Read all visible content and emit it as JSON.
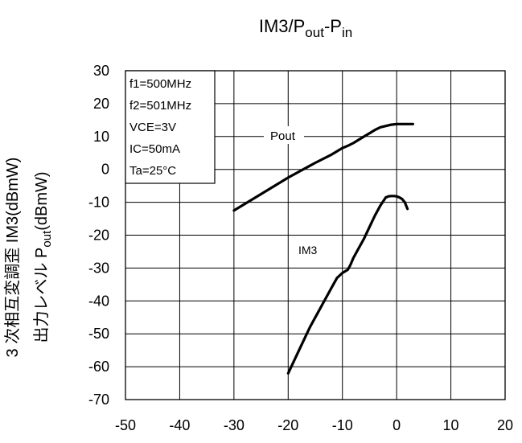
{
  "chart_data": {
    "type": "line",
    "title": {
      "main": "IM3/P",
      "sub1": "out",
      "mid": "-P",
      "sub2": "in"
    },
    "ylabel": {
      "line1": "3 次相互変調歪  IM3(dBmW)",
      "line2_pre": "出力レベル  P",
      "line2_sub": "out",
      "line2_post": "(dBmW)"
    },
    "xlim": [
      -50,
      20
    ],
    "ylim": [
      -70,
      30
    ],
    "x_ticks": [
      -50,
      -40,
      -30,
      -20,
      -10,
      0,
      10,
      20
    ],
    "y_ticks": [
      30,
      20,
      10,
      0,
      -10,
      -20,
      -30,
      -40,
      -50,
      -60,
      -70
    ],
    "x_tick_labels": [
      "-50",
      "-40",
      "-30",
      "-20",
      "-10",
      "0",
      "10",
      "20"
    ],
    "y_tick_labels": [
      "30",
      "20",
      "10",
      "0",
      "-10",
      "-20",
      "-30",
      "-40",
      "-50",
      "-60",
      "-70"
    ],
    "grid": true,
    "conditions": [
      "f1=500MHz",
      "f2=501MHz",
      "VCE=3V",
      "IC=50mA",
      "Ta=25°C"
    ],
    "series": [
      {
        "name": "Pout",
        "color": "#000000",
        "x": [
          -30,
          -25,
          -20,
          -15,
          -12,
          -10,
          -9,
          -8,
          -7,
          -6,
          -5,
          -4,
          -3,
          -2,
          -1,
          0,
          1,
          2,
          3
        ],
        "y": [
          -12.5,
          -7.5,
          -2.5,
          2,
          4.5,
          6.5,
          7.2,
          8,
          9,
          10,
          11,
          12,
          12.8,
          13.2,
          13.6,
          13.8,
          13.8,
          13.8,
          13.8
        ]
      },
      {
        "name": "IM3",
        "color": "#000000",
        "x": [
          -20,
          -18,
          -16,
          -14,
          -12,
          -11,
          -10,
          -9,
          -8.5,
          -8,
          -7,
          -6,
          -5,
          -4,
          -3,
          -2,
          -1.5,
          -1,
          -0.5,
          0,
          0.5,
          1,
          1.5,
          2
        ],
        "y": [
          -62,
          -55,
          -48,
          -42,
          -36,
          -33,
          -31.5,
          -30.5,
          -29,
          -27,
          -24,
          -21,
          -17.5,
          -14,
          -11,
          -8.5,
          -8.2,
          -8.1,
          -8.1,
          -8.2,
          -8.5,
          -9,
          -10,
          -12
        ]
      }
    ]
  }
}
